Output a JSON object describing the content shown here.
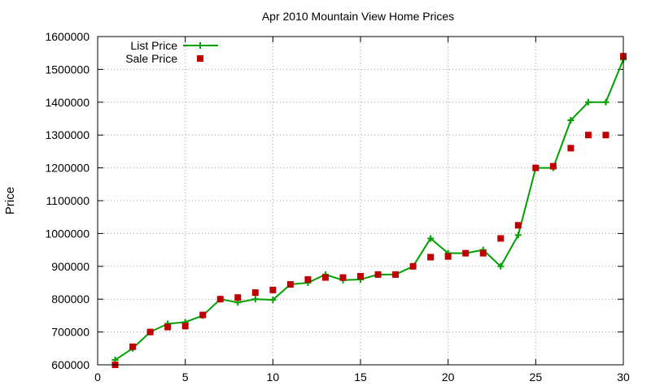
{
  "chart_data": {
    "type": "line",
    "title": "Apr 2010 Mountain View Home Prices",
    "xlabel": "",
    "ylabel": "Price",
    "xlim": [
      0,
      30
    ],
    "ylim": [
      600000,
      1600000
    ],
    "x_ticks": [
      0,
      5,
      10,
      15,
      20,
      25,
      30
    ],
    "y_ticks": [
      600000,
      700000,
      800000,
      900000,
      1000000,
      1100000,
      1200000,
      1300000,
      1400000,
      1500000,
      1600000
    ],
    "grid": true,
    "legend_position": "top-left",
    "series": [
      {
        "name": "List Price",
        "style": "line-with-plus-markers",
        "color": "#00a000",
        "x": [
          1,
          2,
          3,
          4,
          5,
          6,
          7,
          8,
          9,
          10,
          11,
          12,
          13,
          14,
          15,
          16,
          17,
          18,
          19,
          20,
          21,
          22,
          23,
          24,
          25,
          26,
          27,
          28,
          29,
          30
        ],
        "values": [
          615000,
          650000,
          700000,
          725000,
          730000,
          750000,
          800000,
          790000,
          800000,
          798000,
          845000,
          850000,
          875000,
          858000,
          860000,
          875000,
          875000,
          900000,
          985000,
          940000,
          940000,
          950000,
          900000,
          995000,
          1200000,
          1200000,
          1345000,
          1400000,
          1400000,
          1530000
        ]
      },
      {
        "name": "Sale Price",
        "style": "square-markers",
        "color": "#c00000",
        "x": [
          1,
          2,
          3,
          4,
          5,
          6,
          7,
          8,
          9,
          10,
          11,
          12,
          13,
          14,
          15,
          16,
          17,
          18,
          19,
          20,
          21,
          22,
          23,
          24,
          25,
          26,
          27,
          28,
          29,
          30
        ],
        "values": [
          600000,
          655000,
          700000,
          715000,
          718000,
          752000,
          800000,
          805000,
          820000,
          828000,
          845000,
          860000,
          866000,
          866000,
          870000,
          875000,
          875000,
          900000,
          928000,
          930000,
          940000,
          940000,
          985000,
          1025000,
          1200000,
          1205000,
          1260000,
          1300000,
          1300000,
          1540000
        ]
      }
    ]
  }
}
